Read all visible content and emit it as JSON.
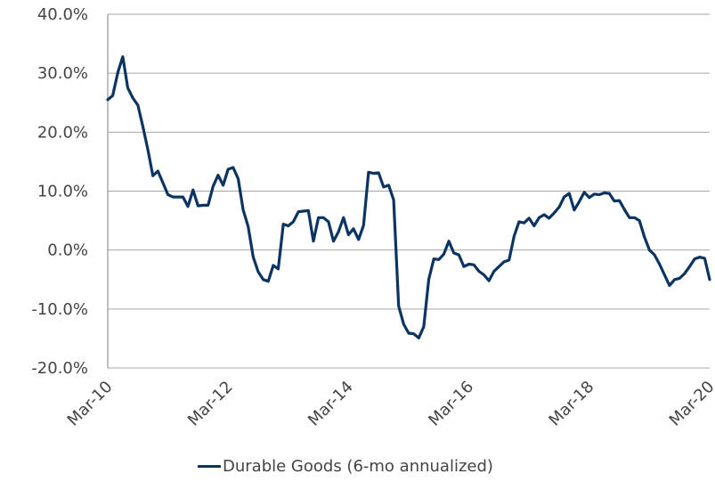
{
  "chart_data": {
    "type": "line",
    "title": "",
    "xlabel": "",
    "ylabel": "",
    "ylim": [
      -20,
      40
    ],
    "y_ticks": [
      -20,
      -10,
      0,
      10,
      20,
      30,
      40
    ],
    "y_tick_labels": [
      "-20.0%",
      "-10.0%",
      "0.0%",
      "10.0%",
      "20.0%",
      "30.0%",
      "40.0%"
    ],
    "xlim": [
      "2010-03",
      "2020-03"
    ],
    "x_ticks": [
      "2010-03",
      "2012-03",
      "2014-03",
      "2016-03",
      "2018-03",
      "2020-03"
    ],
    "x_tick_labels": [
      "Mar-10",
      "Mar-12",
      "Mar-14",
      "Mar-16",
      "Mar-18",
      "Mar-20"
    ],
    "grid": "horizontal",
    "legend_position": "bottom-center",
    "series": [
      {
        "name": "Durable Goods (6-mo annualized)",
        "color": "#0B3463",
        "x": [
          "2010-03",
          "2010-04",
          "2010-05",
          "2010-06",
          "2010-07",
          "2010-08",
          "2010-09",
          "2010-10",
          "2010-11",
          "2010-12",
          "2011-01",
          "2011-02",
          "2011-03",
          "2011-04",
          "2011-05",
          "2011-06",
          "2011-07",
          "2011-08",
          "2011-09",
          "2011-10",
          "2011-11",
          "2011-12",
          "2012-01",
          "2012-02",
          "2012-03",
          "2012-04",
          "2012-05",
          "2012-06",
          "2012-07",
          "2012-08",
          "2012-09",
          "2012-10",
          "2012-11",
          "2012-12",
          "2013-01",
          "2013-02",
          "2013-03",
          "2013-04",
          "2013-05",
          "2013-06",
          "2013-07",
          "2013-08",
          "2013-09",
          "2013-10",
          "2013-11",
          "2013-12",
          "2014-01",
          "2014-02",
          "2014-03",
          "2014-04",
          "2014-05",
          "2014-06",
          "2014-07",
          "2014-08",
          "2014-09",
          "2014-10",
          "2014-11",
          "2014-12",
          "2015-01",
          "2015-02",
          "2015-03",
          "2015-04",
          "2015-05",
          "2015-06",
          "2015-07",
          "2015-08",
          "2015-09",
          "2015-10",
          "2015-11",
          "2015-12",
          "2016-01",
          "2016-02",
          "2016-03",
          "2016-04",
          "2016-05",
          "2016-06",
          "2016-07",
          "2016-08",
          "2016-09",
          "2016-10",
          "2016-11",
          "2016-12",
          "2017-01",
          "2017-02",
          "2017-03",
          "2017-04",
          "2017-05",
          "2017-06",
          "2017-07",
          "2017-08",
          "2017-09",
          "2017-10",
          "2017-11",
          "2017-12",
          "2018-01",
          "2018-02",
          "2018-03",
          "2018-04",
          "2018-05",
          "2018-06",
          "2018-07",
          "2018-08",
          "2018-09",
          "2018-10",
          "2018-11",
          "2018-12",
          "2019-01",
          "2019-02",
          "2019-03",
          "2019-04",
          "2019-05",
          "2019-06",
          "2019-07",
          "2019-08",
          "2019-09",
          "2019-10",
          "2019-11",
          "2019-12",
          "2020-01",
          "2020-02",
          "2020-03"
        ],
        "values": [
          25.5,
          26.2,
          30.1,
          32.8,
          27.5,
          25.8,
          24.6,
          21.0,
          17.0,
          12.6,
          13.4,
          11.4,
          9.4,
          9.0,
          9.0,
          9.0,
          7.4,
          10.2,
          7.5,
          7.6,
          7.6,
          10.8,
          12.7,
          11.0,
          13.7,
          14.0,
          12.1,
          6.8,
          4.0,
          -1.2,
          -3.7,
          -5.0,
          -5.3,
          -2.6,
          -3.2,
          4.4,
          4.1,
          4.8,
          6.5,
          6.6,
          6.7,
          1.5,
          5.5,
          5.5,
          4.8,
          1.5,
          3.1,
          5.5,
          2.6,
          3.6,
          1.8,
          4.2,
          13.2,
          13.0,
          13.1,
          10.7,
          11.0,
          8.5,
          -9.5,
          -12.6,
          -14.1,
          -14.2,
          -14.9,
          -13.0,
          -5.0,
          -1.5,
          -1.6,
          -0.7,
          1.5,
          -0.5,
          -0.8,
          -2.8,
          -2.4,
          -2.5,
          -3.6,
          -4.2,
          -5.2,
          -3.6,
          -2.8,
          -2.0,
          -1.7,
          2.3,
          4.8,
          4.6,
          5.4,
          4.1,
          5.5,
          6.0,
          5.4,
          6.3,
          7.3,
          9.0,
          9.6,
          6.8,
          8.2,
          9.8,
          8.9,
          9.5,
          9.4,
          9.7,
          9.6,
          8.3,
          8.4,
          6.9,
          5.5,
          5.5,
          5.0,
          2.2,
          0.0,
          -0.8,
          -2.4,
          -4.2,
          -6.0,
          -5.0,
          -4.8,
          -4.0,
          -2.8,
          -1.5,
          -1.2,
          -1.4,
          -5.0
        ]
      }
    ]
  }
}
